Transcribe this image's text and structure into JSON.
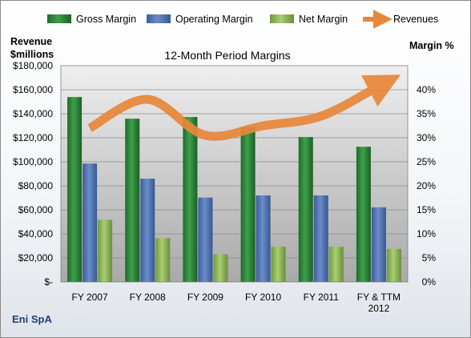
{
  "chart_data": {
    "type": "bar",
    "title": "12-Month Period Margins",
    "company": "Eni SpA",
    "y_left_label": [
      "Revenue",
      "$millions"
    ],
    "y_right_label": "Margin %",
    "categories": [
      [
        "FY 2007"
      ],
      [
        "FY 2008"
      ],
      [
        "FY 2009"
      ],
      [
        "FY 2010"
      ],
      [
        "FY 2011"
      ],
      [
        "FY & TTM",
        "2012"
      ]
    ],
    "y_left_ticks": [
      "$-",
      "$20,000",
      "$40,000",
      "$60,000",
      "$80,000",
      "$100,000",
      "$120,000",
      "$140,000",
      "$160,000",
      "$180,000"
    ],
    "y_right_ticks": [
      "0%",
      "5%",
      "10%",
      "15%",
      "20%",
      "25%",
      "30%",
      "35%",
      "40%"
    ],
    "y_left_range": [
      0,
      180000
    ],
    "y_right_range": [
      0,
      40
    ],
    "bar_axis": "right",
    "grid": true,
    "legend_position": "top",
    "series": [
      {
        "name": "Gross Margin",
        "kind": "bar",
        "axis": "right",
        "color": "#2e8b3a",
        "values": [
          34.2,
          30.2,
          30.5,
          28.6,
          26.8,
          25.0
        ]
      },
      {
        "name": "Operating Margin",
        "kind": "bar",
        "axis": "right",
        "color": "#4f73b5",
        "values": [
          21.9,
          19.1,
          15.6,
          16.0,
          16.0,
          13.8
        ]
      },
      {
        "name": "Net Margin",
        "kind": "bar",
        "axis": "right",
        "color": "#8fb85a",
        "values": [
          11.5,
          8.1,
          5.1,
          6.5,
          6.5,
          6.1
        ]
      },
      {
        "name": "Revenues",
        "kind": "line",
        "axis": "left",
        "color": "#e8873a",
        "values": [
          128000,
          152000,
          122000,
          130000,
          138000,
          163000
        ]
      }
    ]
  }
}
